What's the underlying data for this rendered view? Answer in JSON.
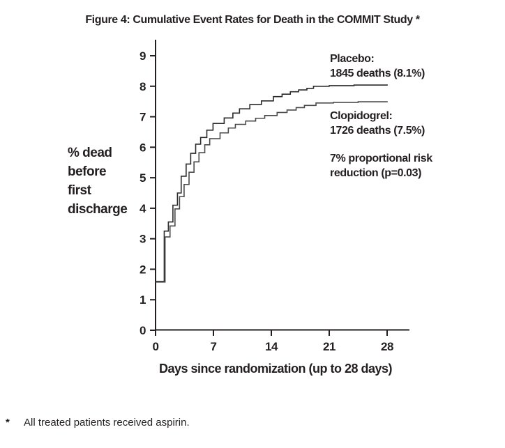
{
  "title": "Figure 4: Cumulative Event Rates for Death in the COMMIT Study *",
  "footnote": {
    "marker": "*",
    "text": "All treated patients received aspirin."
  },
  "colors": {
    "axis": "#231f20",
    "text": "#231f20",
    "placebo_line": "#2b2b2b",
    "clopidogrel_line": "#4a4a4a"
  },
  "chart_data": {
    "type": "line",
    "subtype": "step",
    "title": "Figure 4: Cumulative Event Rates for Death in the COMMIT Study *",
    "xlabel": "Days since randomization (up to 28 days)",
    "ylabel_lines": [
      "% dead",
      "before",
      "first",
      "discharge"
    ],
    "xlim": [
      0,
      28
    ],
    "ylim": [
      0,
      9
    ],
    "xticks": [
      0,
      7,
      14,
      21,
      28
    ],
    "yticks": [
      0,
      1,
      2,
      3,
      4,
      5,
      6,
      7,
      8,
      9
    ],
    "grid": false,
    "legend_position": "annotations-right",
    "series": [
      {
        "name": "Placebo",
        "final_label": "1845 deaths (8.1%)",
        "color": "#2b2b2b",
        "points": [
          [
            0,
            1.6
          ],
          [
            1.05,
            3.25
          ],
          [
            1.55,
            3.55
          ],
          [
            2.1,
            4.1
          ],
          [
            2.65,
            4.5
          ],
          [
            3.1,
            5.05
          ],
          [
            3.7,
            5.45
          ],
          [
            4.25,
            5.8
          ],
          [
            4.85,
            6.1
          ],
          [
            5.45,
            6.32
          ],
          [
            6.2,
            6.56
          ],
          [
            6.95,
            6.78
          ],
          [
            8.3,
            6.96
          ],
          [
            9.35,
            7.12
          ],
          [
            10.15,
            7.26
          ],
          [
            11.4,
            7.4
          ],
          [
            12.8,
            7.52
          ],
          [
            14.25,
            7.66
          ],
          [
            15.3,
            7.74
          ],
          [
            16.3,
            7.82
          ],
          [
            17.3,
            7.88
          ],
          [
            18.3,
            7.93
          ],
          [
            19.1,
            8.0
          ],
          [
            21,
            8.02
          ],
          [
            24,
            8.04
          ],
          [
            28,
            8.06
          ]
        ]
      },
      {
        "name": "Clopidogrel",
        "final_label": "1726 deaths (7.5%)",
        "color": "#4a4a4a",
        "points": [
          [
            0,
            1.58
          ],
          [
            1.15,
            3.06
          ],
          [
            1.75,
            3.42
          ],
          [
            2.35,
            3.98
          ],
          [
            2.9,
            4.38
          ],
          [
            3.45,
            4.78
          ],
          [
            4.05,
            5.18
          ],
          [
            4.65,
            5.52
          ],
          [
            5.25,
            5.82
          ],
          [
            5.95,
            6.08
          ],
          [
            6.55,
            6.28
          ],
          [
            7.8,
            6.47
          ],
          [
            8.8,
            6.63
          ],
          [
            9.65,
            6.75
          ],
          [
            10.9,
            6.86
          ],
          [
            12.1,
            6.95
          ],
          [
            13.2,
            7.04
          ],
          [
            14.7,
            7.14
          ],
          [
            15.9,
            7.22
          ],
          [
            17,
            7.3
          ],
          [
            18,
            7.37
          ],
          [
            19.4,
            7.45
          ],
          [
            21.5,
            7.47
          ],
          [
            24.5,
            7.49
          ],
          [
            28,
            7.51
          ]
        ]
      }
    ],
    "annotations": [
      {
        "id": "placebo",
        "lines": [
          "Placebo:",
          "1845 deaths (8.1%)"
        ]
      },
      {
        "id": "clopidogrel",
        "lines": [
          "Clopidogrel:",
          "1726 deaths (7.5%)"
        ]
      },
      {
        "id": "risk",
        "lines": [
          "7% proportional risk",
          "reduction (p=0.03)"
        ]
      }
    ]
  }
}
